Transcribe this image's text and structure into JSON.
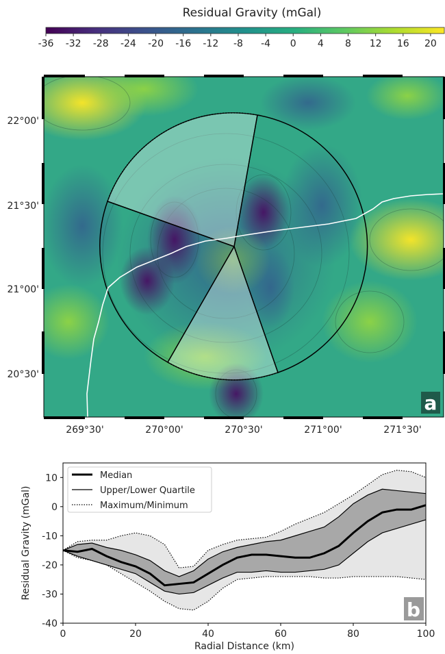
{
  "colorbar": {
    "title": "Residual Gravity (mGal)",
    "range": [
      -36,
      22
    ],
    "ticks": [
      "-36",
      "-32",
      "-28",
      "-24",
      "-20",
      "-16",
      "-12",
      "-8",
      "-4",
      "0",
      "4",
      "8",
      "12",
      "16",
      "20"
    ],
    "colors": [
      "#440154",
      "#472f7d",
      "#3b528b",
      "#2c728e",
      "#21918c",
      "#28ae80",
      "#5ec962",
      "#addc30",
      "#fde725"
    ]
  },
  "map": {
    "panel_label": "a",
    "lat_labels": [
      "22°00'",
      "21°30'",
      "21°00'",
      "20°30'"
    ],
    "lon_labels": [
      "269°30'",
      "270°00'",
      "270°30'",
      "271°00'",
      "271°30'"
    ]
  },
  "chart_data": {
    "type": "line",
    "panel_label": "b",
    "xlabel": "Radial Distance (km)",
    "ylabel": "Residual Gravity (mGal)",
    "xlim": [
      0,
      100
    ],
    "ylim": [
      -40,
      15
    ],
    "xticks": [
      0,
      20,
      40,
      60,
      80,
      100
    ],
    "yticks": [
      10,
      0,
      -10,
      -20,
      -30,
      -40
    ],
    "legend_position": "top-left",
    "x": [
      0,
      4,
      8,
      12,
      16,
      20,
      24,
      28,
      32,
      36,
      40,
      44,
      48,
      52,
      56,
      60,
      64,
      68,
      72,
      76,
      80,
      84,
      88,
      92,
      96,
      100
    ],
    "series": [
      {
        "name": "Median",
        "style": "thick",
        "values": [
          -15,
          -15.5,
          -14.5,
          -17,
          -19,
          -20.5,
          -23,
          -27,
          -26.5,
          -26,
          -23,
          -20,
          -17.5,
          -16.5,
          -16.5,
          -17,
          -17.5,
          -17.5,
          -16,
          -13.5,
          -9,
          -5,
          -2,
          -1,
          -1,
          0.5
        ]
      },
      {
        "name": "Upper Quartile",
        "style": "thin",
        "values": [
          -15,
          -13,
          -12.5,
          -14,
          -15,
          -16.5,
          -18.5,
          -22,
          -24,
          -22,
          -18,
          -15.5,
          -14,
          -13,
          -12,
          -11.5,
          -10,
          -8.5,
          -7,
          -3.5,
          1,
          4,
          6,
          5.5,
          5,
          4.5
        ]
      },
      {
        "name": "Lower Quartile",
        "style": "thin",
        "values": [
          -15,
          -17,
          -18.5,
          -20,
          -21.5,
          -23,
          -26,
          -29,
          -30,
          -29.5,
          -27,
          -24.5,
          -22.5,
          -22.5,
          -22,
          -22.5,
          -22.5,
          -22,
          -21.5,
          -20,
          -16,
          -12,
          -9,
          -7.5,
          -6,
          -4.5
        ]
      },
      {
        "name": "Maximum",
        "style": "dotted",
        "values": [
          -15,
          -12,
          -11.5,
          -11.5,
          -10,
          -9,
          -10,
          -13,
          -21,
          -20.5,
          -15,
          -13,
          -11.5,
          -11,
          -10.5,
          -8.5,
          -6,
          -4,
          -2,
          1,
          4,
          7.5,
          11,
          12.5,
          12,
          10
        ]
      },
      {
        "name": "Minimum",
        "style": "dotted",
        "values": [
          -15,
          -17.5,
          -18.5,
          -20,
          -23,
          -26,
          -29,
          -32.5,
          -35,
          -35.5,
          -32.5,
          -28,
          -25,
          -24.5,
          -24,
          -24,
          -24,
          -24,
          -24.5,
          -24.5,
          -24,
          -24,
          -24,
          -24,
          -24.5,
          -25
        ]
      }
    ],
    "legend": [
      "Median",
      "Upper/Lower Quartile",
      "Maximum/Minimum"
    ]
  }
}
